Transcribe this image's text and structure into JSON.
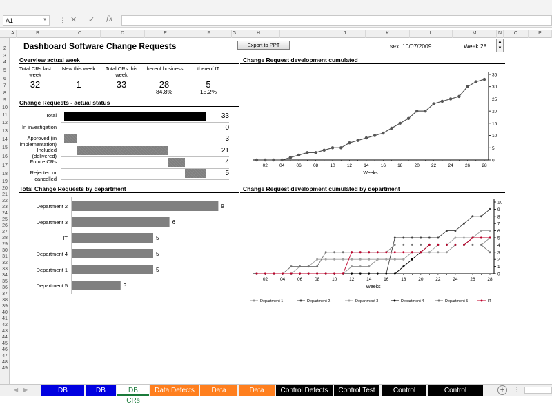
{
  "formula_bar": {
    "cell_ref": "A1",
    "fx": "fx",
    "formula": ""
  },
  "columns": [
    "A",
    "B",
    "C",
    "D",
    "E",
    "F",
    "G",
    "H",
    "I",
    "J",
    "K",
    "L",
    "M",
    "N",
    "O",
    "P"
  ],
  "rows": [
    "2",
    "3",
    "4",
    "5",
    "6",
    "7",
    "8",
    "9",
    "10",
    "11",
    "12",
    "13",
    "14",
    "15",
    "16",
    "17",
    "18",
    "19",
    "20",
    "21",
    "22",
    "23",
    "24",
    "25",
    "26",
    "27",
    "28",
    "29",
    "30",
    "31",
    "32",
    "33",
    "34",
    "35",
    "36",
    "37",
    "38",
    "39",
    "40",
    "41",
    "42",
    "43",
    "44",
    "45",
    "46",
    "47",
    "48",
    "49"
  ],
  "header": {
    "title": "Dashboard Software Change Requests",
    "export_button": "Export to PPT",
    "date": "sex, 10/07/2009",
    "week": "Week 28"
  },
  "overview": {
    "title": "Overview actual week",
    "cols": [
      {
        "label": "Total CRs last week",
        "value": "32",
        "pct": ""
      },
      {
        "label": "New this week",
        "value": "1",
        "pct": ""
      },
      {
        "label": "Total CRs this week",
        "value": "33",
        "pct": ""
      },
      {
        "label": "thereof business",
        "value": "28",
        "pct": "84,8%"
      },
      {
        "label": "thereof IT",
        "value": "5",
        "pct": "15,2%"
      }
    ]
  },
  "status": {
    "title": "Change Requests - actual status",
    "rows": [
      {
        "label": "Total",
        "value": "33"
      },
      {
        "label": "In investigation",
        "value": "0"
      },
      {
        "label": "Approved (in implementation)",
        "value": "3"
      },
      {
        "label": "Included (delivered)",
        "value": "21"
      },
      {
        "label": "Future CRs",
        "value": "4"
      },
      {
        "label": "Rejected or cancelled",
        "value": "5"
      }
    ]
  },
  "dept_title": "Total Change Requests by department",
  "cum_title": "Change Request development cumulated",
  "cumdept_title": "Change Request development cumulated by department",
  "chart_data": [
    {
      "type": "bar",
      "title": "Total Change Requests by department",
      "orientation": "horizontal",
      "categories": [
        "Department 2",
        "Department 3",
        "IT",
        "Department 4",
        "Department 1",
        "Department 5"
      ],
      "values": [
        9,
        6,
        5,
        5,
        5,
        3
      ],
      "xlim": [
        0,
        10
      ]
    },
    {
      "type": "line",
      "title": "Change Request development cumulated",
      "xlabel": "Weeks",
      "x": [
        1,
        2,
        3,
        4,
        5,
        6,
        7,
        8,
        9,
        10,
        11,
        12,
        13,
        14,
        15,
        16,
        17,
        18,
        19,
        20,
        21,
        22,
        23,
        24,
        25,
        26,
        27,
        28
      ],
      "x_ticks": [
        "02",
        "04",
        "06",
        "08",
        "10",
        "12",
        "14",
        "16",
        "18",
        "20",
        "22",
        "24",
        "26",
        "28"
      ],
      "y_ticks": [
        "0",
        "5",
        "10",
        "15",
        "20",
        "25",
        "30",
        "35"
      ],
      "values": [
        0,
        0,
        0,
        0,
        1,
        2,
        3,
        3,
        4,
        5,
        5,
        7,
        8,
        9,
        10,
        11,
        13,
        15,
        17,
        20,
        20,
        23,
        24,
        25,
        26,
        30,
        32,
        33
      ],
      "ylim": [
        0,
        35
      ],
      "y_axis": "right"
    },
    {
      "type": "line",
      "title": "Change Request development cumulated by department",
      "xlabel": "Weeks",
      "x": [
        1,
        2,
        3,
        4,
        5,
        6,
        7,
        8,
        9,
        10,
        11,
        12,
        13,
        14,
        15,
        16,
        17,
        18,
        19,
        20,
        21,
        22,
        23,
        24,
        25,
        26,
        27,
        28
      ],
      "x_ticks": [
        "02",
        "04",
        "06",
        "08",
        "10",
        "12",
        "14",
        "16",
        "18",
        "20",
        "22",
        "24",
        "26",
        "28"
      ],
      "y_ticks": [
        "0",
        "1",
        "2",
        "3",
        "4",
        "5",
        "6",
        "7",
        "8",
        "9",
        "10"
      ],
      "ylim": [
        0,
        10
      ],
      "y_axis": "right",
      "legend_position": "bottom",
      "series": [
        {
          "name": "Department 1",
          "color": "#909090",
          "values": [
            0,
            0,
            0,
            0,
            0,
            0,
            0,
            0,
            0,
            0,
            0,
            1,
            1,
            1,
            2,
            2,
            2,
            2,
            3,
            3,
            3,
            3,
            3,
            4,
            4,
            4,
            4,
            5
          ]
        },
        {
          "name": "Department 2",
          "color": "#404040",
          "values": [
            0,
            0,
            0,
            0,
            0,
            0,
            0,
            0,
            0,
            0,
            0,
            0,
            0,
            0,
            0,
            0,
            5,
            5,
            5,
            5,
            5,
            5,
            6,
            6,
            7,
            8,
            8,
            9
          ]
        },
        {
          "name": "Department 3",
          "color": "#a0a0a0",
          "values": [
            0,
            0,
            0,
            0,
            0,
            1,
            1,
            2,
            2,
            2,
            2,
            2,
            2,
            2,
            2,
            2,
            2,
            2,
            3,
            3,
            3,
            4,
            4,
            5,
            5,
            5,
            6,
            6
          ]
        },
        {
          "name": "Department 4",
          "color": "#000000",
          "values": [
            0,
            0,
            0,
            0,
            0,
            0,
            0,
            0,
            0,
            0,
            0,
            0,
            0,
            0,
            0,
            0,
            0,
            1,
            2,
            3,
            4,
            4,
            4,
            4,
            4,
            5,
            5,
            5
          ]
        },
        {
          "name": "Department 5",
          "color": "#707070",
          "values": [
            0,
            0,
            0,
            0,
            1,
            1,
            1,
            1,
            3,
            3,
            3,
            3,
            3,
            3,
            3,
            3,
            4,
            4,
            4,
            4,
            4,
            4,
            4,
            4,
            4,
            4,
            4,
            3
          ]
        },
        {
          "name": "IT",
          "color": "#c0002a",
          "values": [
            0,
            0,
            0,
            0,
            0,
            0,
            0,
            0,
            0,
            0,
            0,
            3,
            3,
            3,
            3,
            3,
            3,
            3,
            3,
            3,
            4,
            4,
            4,
            4,
            4,
            5,
            5,
            5
          ]
        }
      ]
    }
  ],
  "tabs": [
    {
      "label": "DB Defects",
      "bg": "#0000e0",
      "fg": "#ffffff"
    },
    {
      "label": "DB Test",
      "bg": "#0000e0",
      "fg": "#ffffff"
    },
    {
      "label": "DB CRs",
      "bg": "#ffffff",
      "fg": "#1a7a3a"
    },
    {
      "label": "Data Defects",
      "bg": "#ff7f1e",
      "fg": "#ffffff"
    },
    {
      "label": "Data Test",
      "bg": "#ff7f1e",
      "fg": "#ffffff"
    },
    {
      "label": "Data CRs",
      "bg": "#ff7f1e",
      "fg": "#ffffff"
    },
    {
      "label": "Control Defects",
      "bg": "#000000",
      "fg": "#ffffff"
    },
    {
      "label": "Control Test",
      "bg": "#000000",
      "fg": "#ffffff"
    },
    {
      "label": "Control CRs",
      "bg": "#000000",
      "fg": "#ffffff"
    },
    {
      "label": "Control General",
      "bg": "#000000",
      "fg": "#ffffff"
    }
  ],
  "icons": [
    "cancel-icon",
    "enter-icon",
    "fx-icon",
    "add-sheet-icon",
    "spinner-up-icon",
    "spinner-down-icon"
  ]
}
